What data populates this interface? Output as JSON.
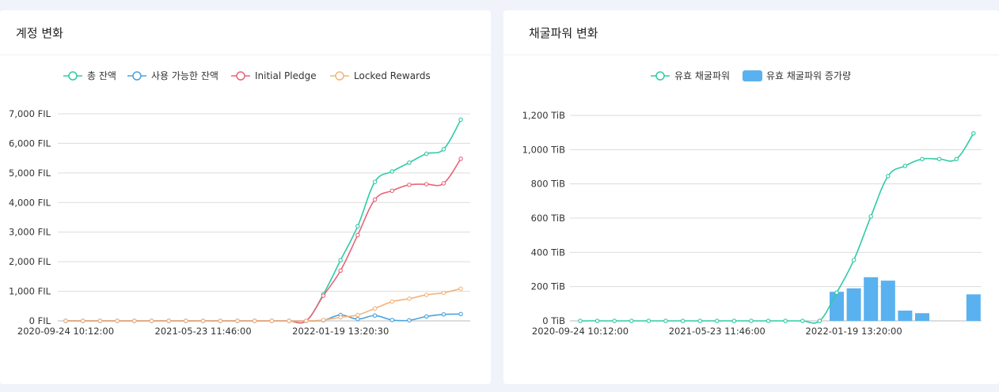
{
  "cards": [
    {
      "title": "계정 변화"
    },
    {
      "title": "채굴파워 변화"
    }
  ],
  "colors": {
    "green": "#2fcba6",
    "blue": "#4aa3df",
    "red": "#e8647a",
    "orange": "#f6b37a",
    "bar": "#5ab1ef",
    "grid": "#dcdcdc"
  },
  "chart_data": [
    {
      "type": "line",
      "title": "계정 변화",
      "yunit": "FIL",
      "ylim": [
        0,
        7000
      ],
      "yticks": [
        0,
        1000,
        2000,
        3000,
        4000,
        5000,
        6000,
        7000
      ],
      "ytick_labels": [
        "0 FIL",
        "1,000 FIL",
        "2,000 FIL",
        "3,000 FIL",
        "4,000 FIL",
        "5,000 FIL",
        "6,000 FIL",
        "7,000 FIL"
      ],
      "xtick_labels": [
        "2020-09-24 10:12:00",
        "2021-05-23 11:46:00",
        "2022-01-19 13:20:30"
      ],
      "xtick_index": [
        0,
        8,
        16
      ],
      "n_points": 24,
      "legend_position": "top-center",
      "series": [
        {
          "name": "총 잔액",
          "color": "#2fcba6",
          "values": [
            0,
            0,
            0,
            0,
            0,
            0,
            0,
            0,
            0,
            0,
            0,
            0,
            0,
            0,
            0,
            900,
            2050,
            3200,
            4700,
            5050,
            5350,
            5650,
            5800,
            6800
          ]
        },
        {
          "name": "사용 가능한 잔액",
          "color": "#4aa3df",
          "values": [
            0,
            0,
            0,
            0,
            0,
            0,
            0,
            0,
            0,
            0,
            0,
            0,
            0,
            0,
            0,
            20,
            200,
            60,
            180,
            30,
            20,
            150,
            220,
            230
          ]
        },
        {
          "name": "Initial Pledge",
          "color": "#e8647a",
          "values": [
            0,
            0,
            0,
            0,
            0,
            0,
            0,
            0,
            0,
            0,
            0,
            0,
            0,
            0,
            0,
            850,
            1700,
            2900,
            4100,
            4400,
            4600,
            4620,
            4650,
            5480
          ]
        },
        {
          "name": "Locked Rewards",
          "color": "#f6b37a",
          "values": [
            0,
            0,
            0,
            0,
            0,
            0,
            0,
            0,
            0,
            0,
            0,
            0,
            0,
            0,
            0,
            30,
            120,
            200,
            420,
            650,
            750,
            880,
            950,
            1090
          ]
        }
      ]
    },
    {
      "type": "bar+line",
      "title": "채굴파워 변화",
      "yunit": "TiB",
      "ylim": [
        0,
        1200
      ],
      "yticks": [
        0,
        200,
        400,
        600,
        800,
        1000,
        1200
      ],
      "ytick_labels": [
        "0 TiB",
        "200 TiB",
        "400 TiB",
        "600 TiB",
        "800 TiB",
        "1,000 TiB",
        "1,200 TiB"
      ],
      "xtick_labels": [
        "2020-09-24 10:12:00",
        "2021-05-23 11:46:00",
        "2022-01-19 13:20:00"
      ],
      "xtick_index": [
        0,
        8,
        16
      ],
      "n_points": 24,
      "legend_position": "top-center",
      "series": [
        {
          "name": "유효 채굴파워",
          "kind": "line",
          "color": "#2fcba6",
          "values": [
            0,
            0,
            0,
            0,
            0,
            0,
            0,
            0,
            0,
            0,
            0,
            0,
            0,
            0,
            0,
            165,
            355,
            610,
            845,
            905,
            945,
            945,
            945,
            1095
          ]
        },
        {
          "name": "유효 채굴파워 증가량",
          "kind": "bar",
          "color": "#5ab1ef",
          "values": [
            0,
            0,
            0,
            0,
            0,
            0,
            0,
            0,
            0,
            0,
            0,
            0,
            0,
            0,
            0,
            170,
            190,
            255,
            235,
            60,
            45,
            0,
            0,
            155
          ]
        }
      ]
    }
  ]
}
